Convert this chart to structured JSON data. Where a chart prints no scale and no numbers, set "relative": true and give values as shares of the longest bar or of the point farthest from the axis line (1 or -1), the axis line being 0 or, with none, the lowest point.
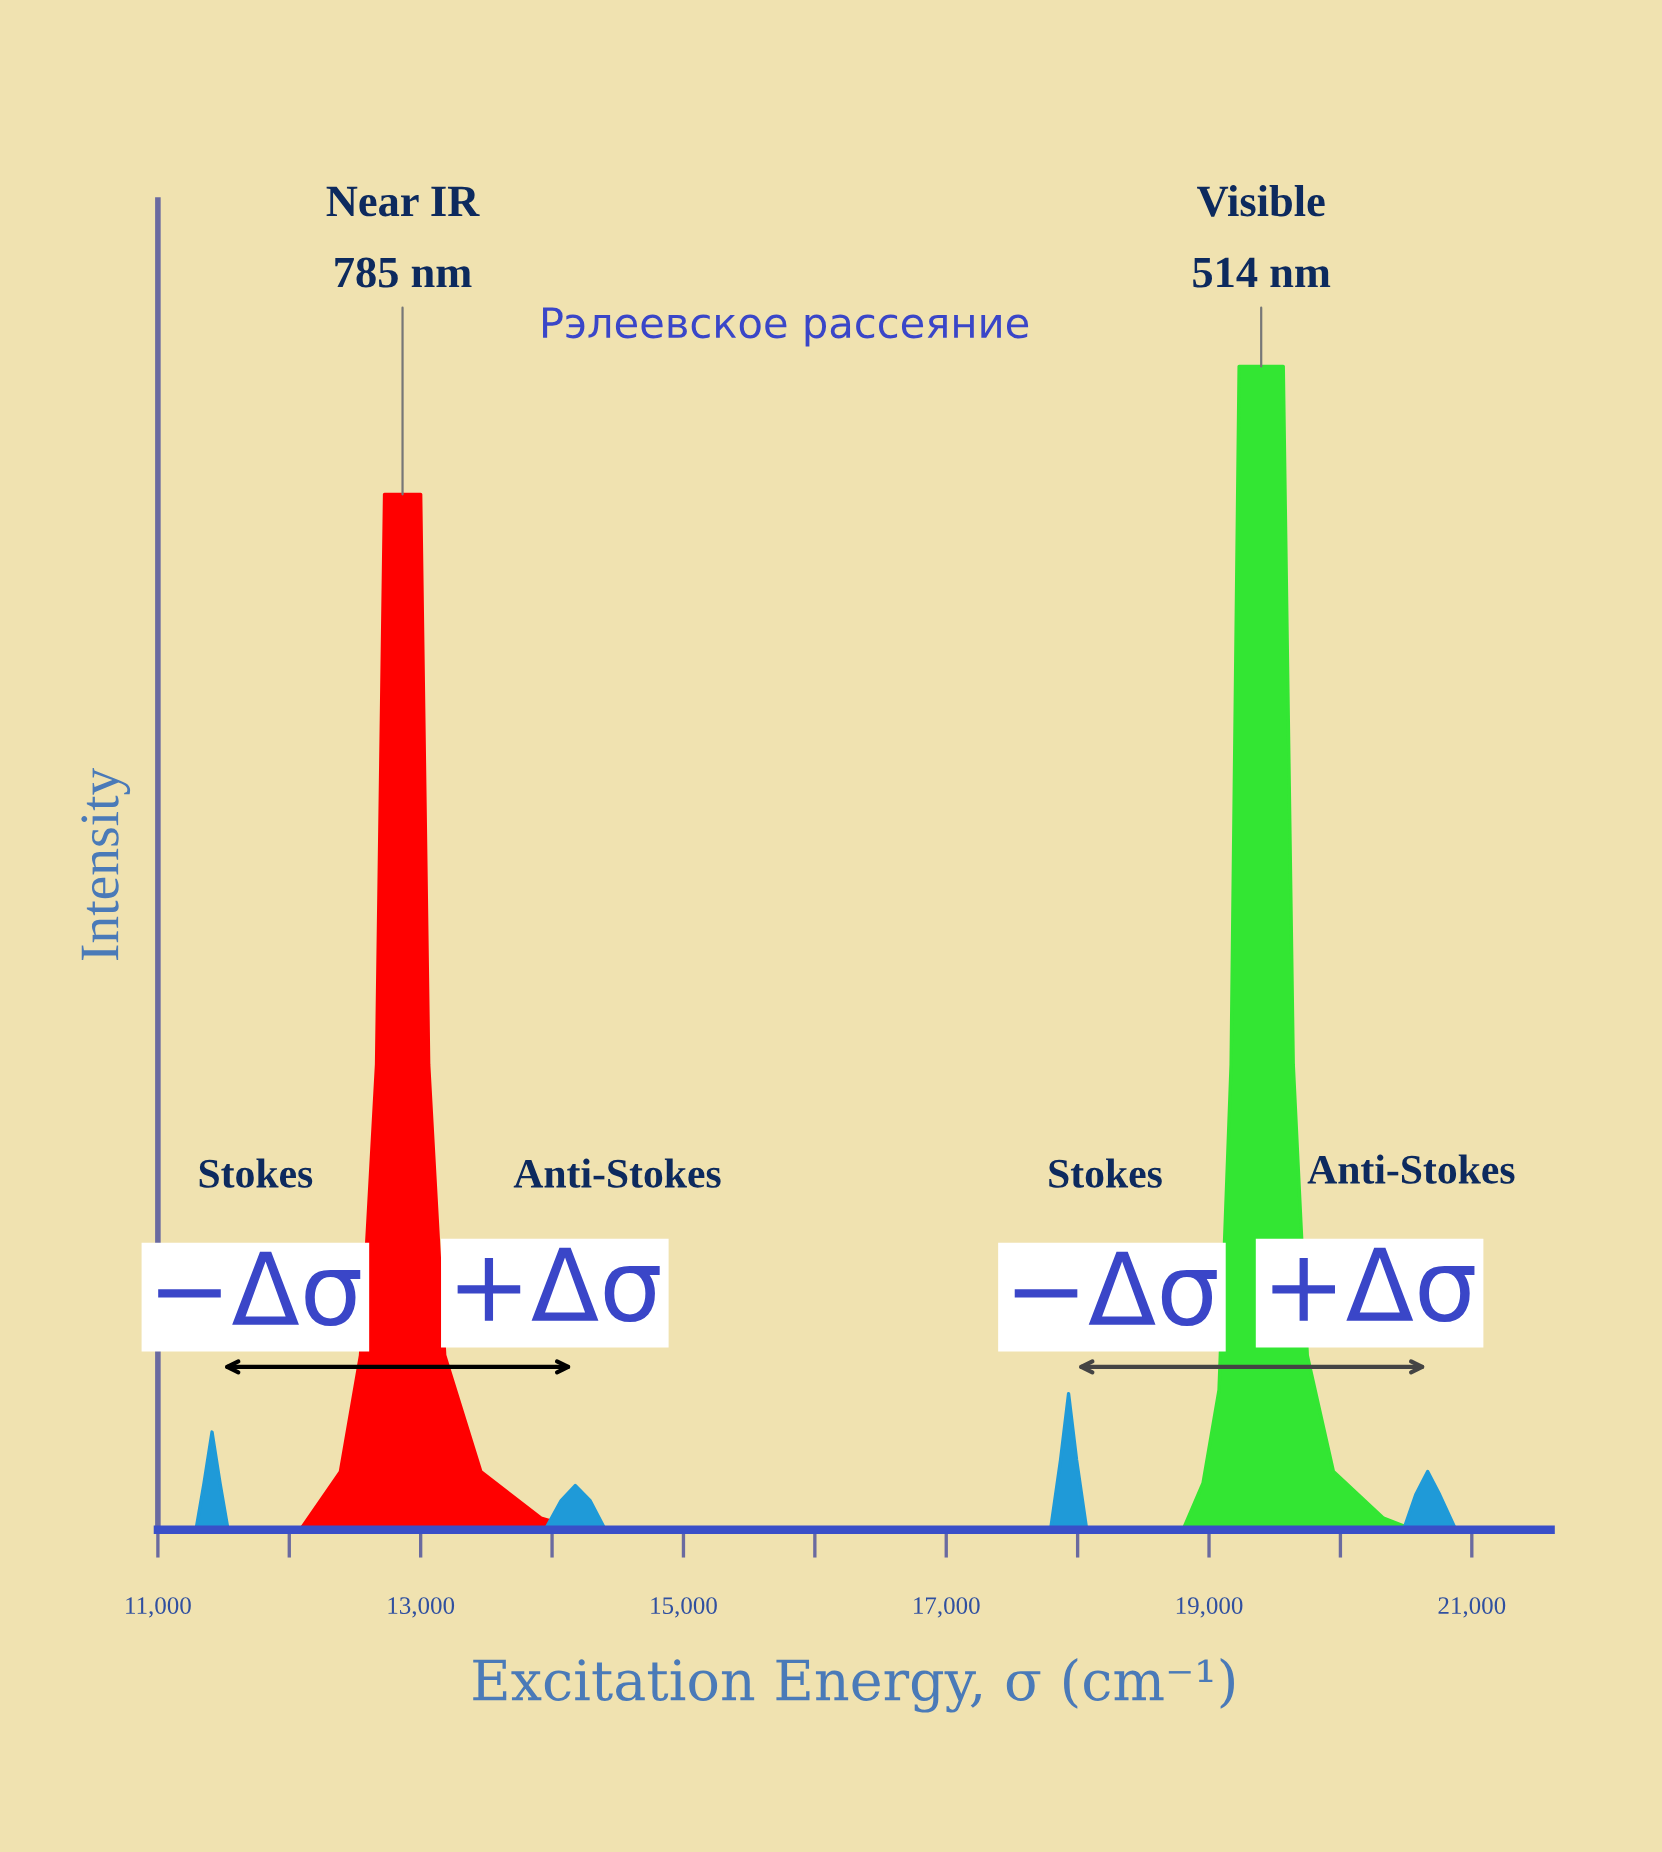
{
  "chart_data": {
    "type": "area",
    "relative": true,
    "xlabel": "Excitation Energy, σ (cm⁻¹)",
    "ylabel": "Intensity",
    "xlim": [
      11000,
      21600
    ],
    "xticks": [
      {
        "value": 11000,
        "label": "11,000"
      },
      {
        "value": 12000,
        "label": null
      },
      {
        "value": 13000,
        "label": "13,000"
      },
      {
        "value": 14000,
        "label": null
      },
      {
        "value": 15000,
        "label": "15,000"
      },
      {
        "value": 16000,
        "label": null
      },
      {
        "value": 17000,
        "label": "17,000"
      },
      {
        "value": 18000,
        "label": null
      },
      {
        "value": 19000,
        "label": "19,000"
      },
      {
        "value": 20000,
        "label": null
      },
      {
        "value": 21000,
        "label": "21,000"
      }
    ],
    "grid": false,
    "legend": false,
    "series": [
      {
        "color": "#ff0000",
        "x": [
          12084,
          12389,
          12542,
          12664,
          12725,
          13000,
          13061,
          13183,
          13458,
          13916,
          14221
        ],
        "values": [
          0,
          0.05,
          0.15,
          0.4,
          0.89,
          0.89,
          0.4,
          0.15,
          0.05,
          0.01,
          0
        ]
      },
      {
        "color": "#33e633",
        "x": [
          18802,
          18954,
          19076,
          19168,
          19229,
          19565,
          19641,
          19748,
          19947,
          20328,
          20557
        ],
        "values": [
          0,
          0.04,
          0.12,
          0.4,
          1,
          1,
          0.4,
          0.15,
          0.05,
          0.01,
          0
        ]
      },
      {
        "color": "#1f9ad8",
        "x": [
          11290,
          11351,
          11412,
          11473,
          11534
        ],
        "values": [
          0,
          0.04,
          0.084,
          0.04,
          0
        ]
      },
      {
        "color": "#1f9ad8",
        "x": [
          13947,
          14069,
          14176,
          14290,
          14405
        ],
        "values": [
          0,
          0.025,
          0.038,
          0.025,
          0
        ]
      },
      {
        "color": "#1f9ad8",
        "x": [
          17794,
          17870,
          17931,
          17992,
          18069
        ],
        "values": [
          0,
          0.06,
          0.117,
          0.06,
          0
        ]
      },
      {
        "color": "#1f9ad8",
        "x": [
          20481,
          20573,
          20664,
          20756,
          20878
        ],
        "values": [
          0,
          0.03,
          0.05,
          0.03,
          0
        ]
      }
    ],
    "annotations": [
      {
        "text": "Near IR\n785 nm",
        "x": 12862,
        "y": 0.89
      },
      {
        "text": "Visible\n514 nm",
        "x": 19397,
        "y": 1
      },
      "Рэлеевское рассеяние",
      "Stokes",
      "Anti-Stokes",
      "−Δσ",
      "+Δσ",
      "Stokes",
      "Anti-Stokes",
      "−Δσ",
      "+Δσ"
    ]
  }
}
